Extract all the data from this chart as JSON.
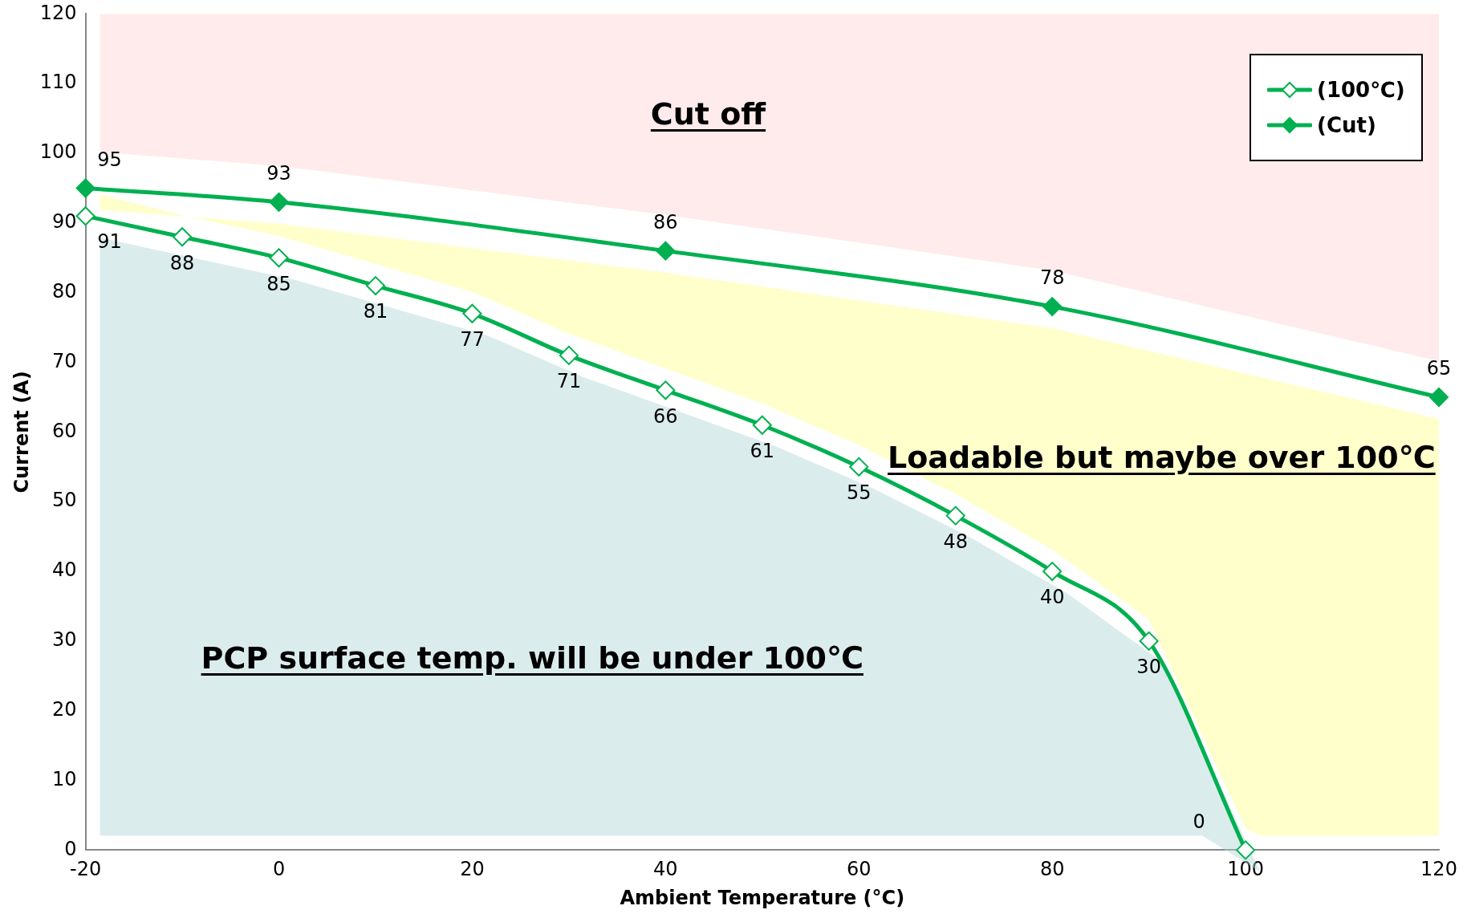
{
  "chart_data": {
    "type": "line",
    "xlabel": "Ambient Temperature (°C)",
    "ylabel": "Current (A)",
    "series": [
      {
        "name": "(100℃)",
        "color": "#00b050",
        "x": [
          -20,
          -10,
          0,
          10,
          20,
          30,
          40,
          50,
          60,
          70,
          80,
          90,
          100
        ],
        "values": [
          91,
          88,
          85,
          81,
          77,
          71,
          66,
          61,
          55,
          48,
          40,
          30,
          0
        ]
      },
      {
        "name": "(Cut)",
        "color": "#00b050",
        "x": [
          -20,
          0,
          40,
          80,
          120
        ],
        "values": [
          95,
          93,
          86,
          78,
          65
        ]
      }
    ],
    "xlim": [
      -20,
      120
    ],
    "xticks": [
      -20,
      0,
      20,
      40,
      60,
      80,
      100,
      120
    ],
    "ylim": [
      0,
      120
    ],
    "yticks": [
      0,
      10,
      20,
      30,
      40,
      50,
      60,
      70,
      80,
      90,
      100,
      110,
      120
    ],
    "grid": false,
    "legend": "top right",
    "marker": "diamond",
    "data_labels": true,
    "annotations": [
      "Cut off",
      "Loadable but maybe over 100℃",
      "PCP surface temp. will be under 100℃"
    ]
  }
}
